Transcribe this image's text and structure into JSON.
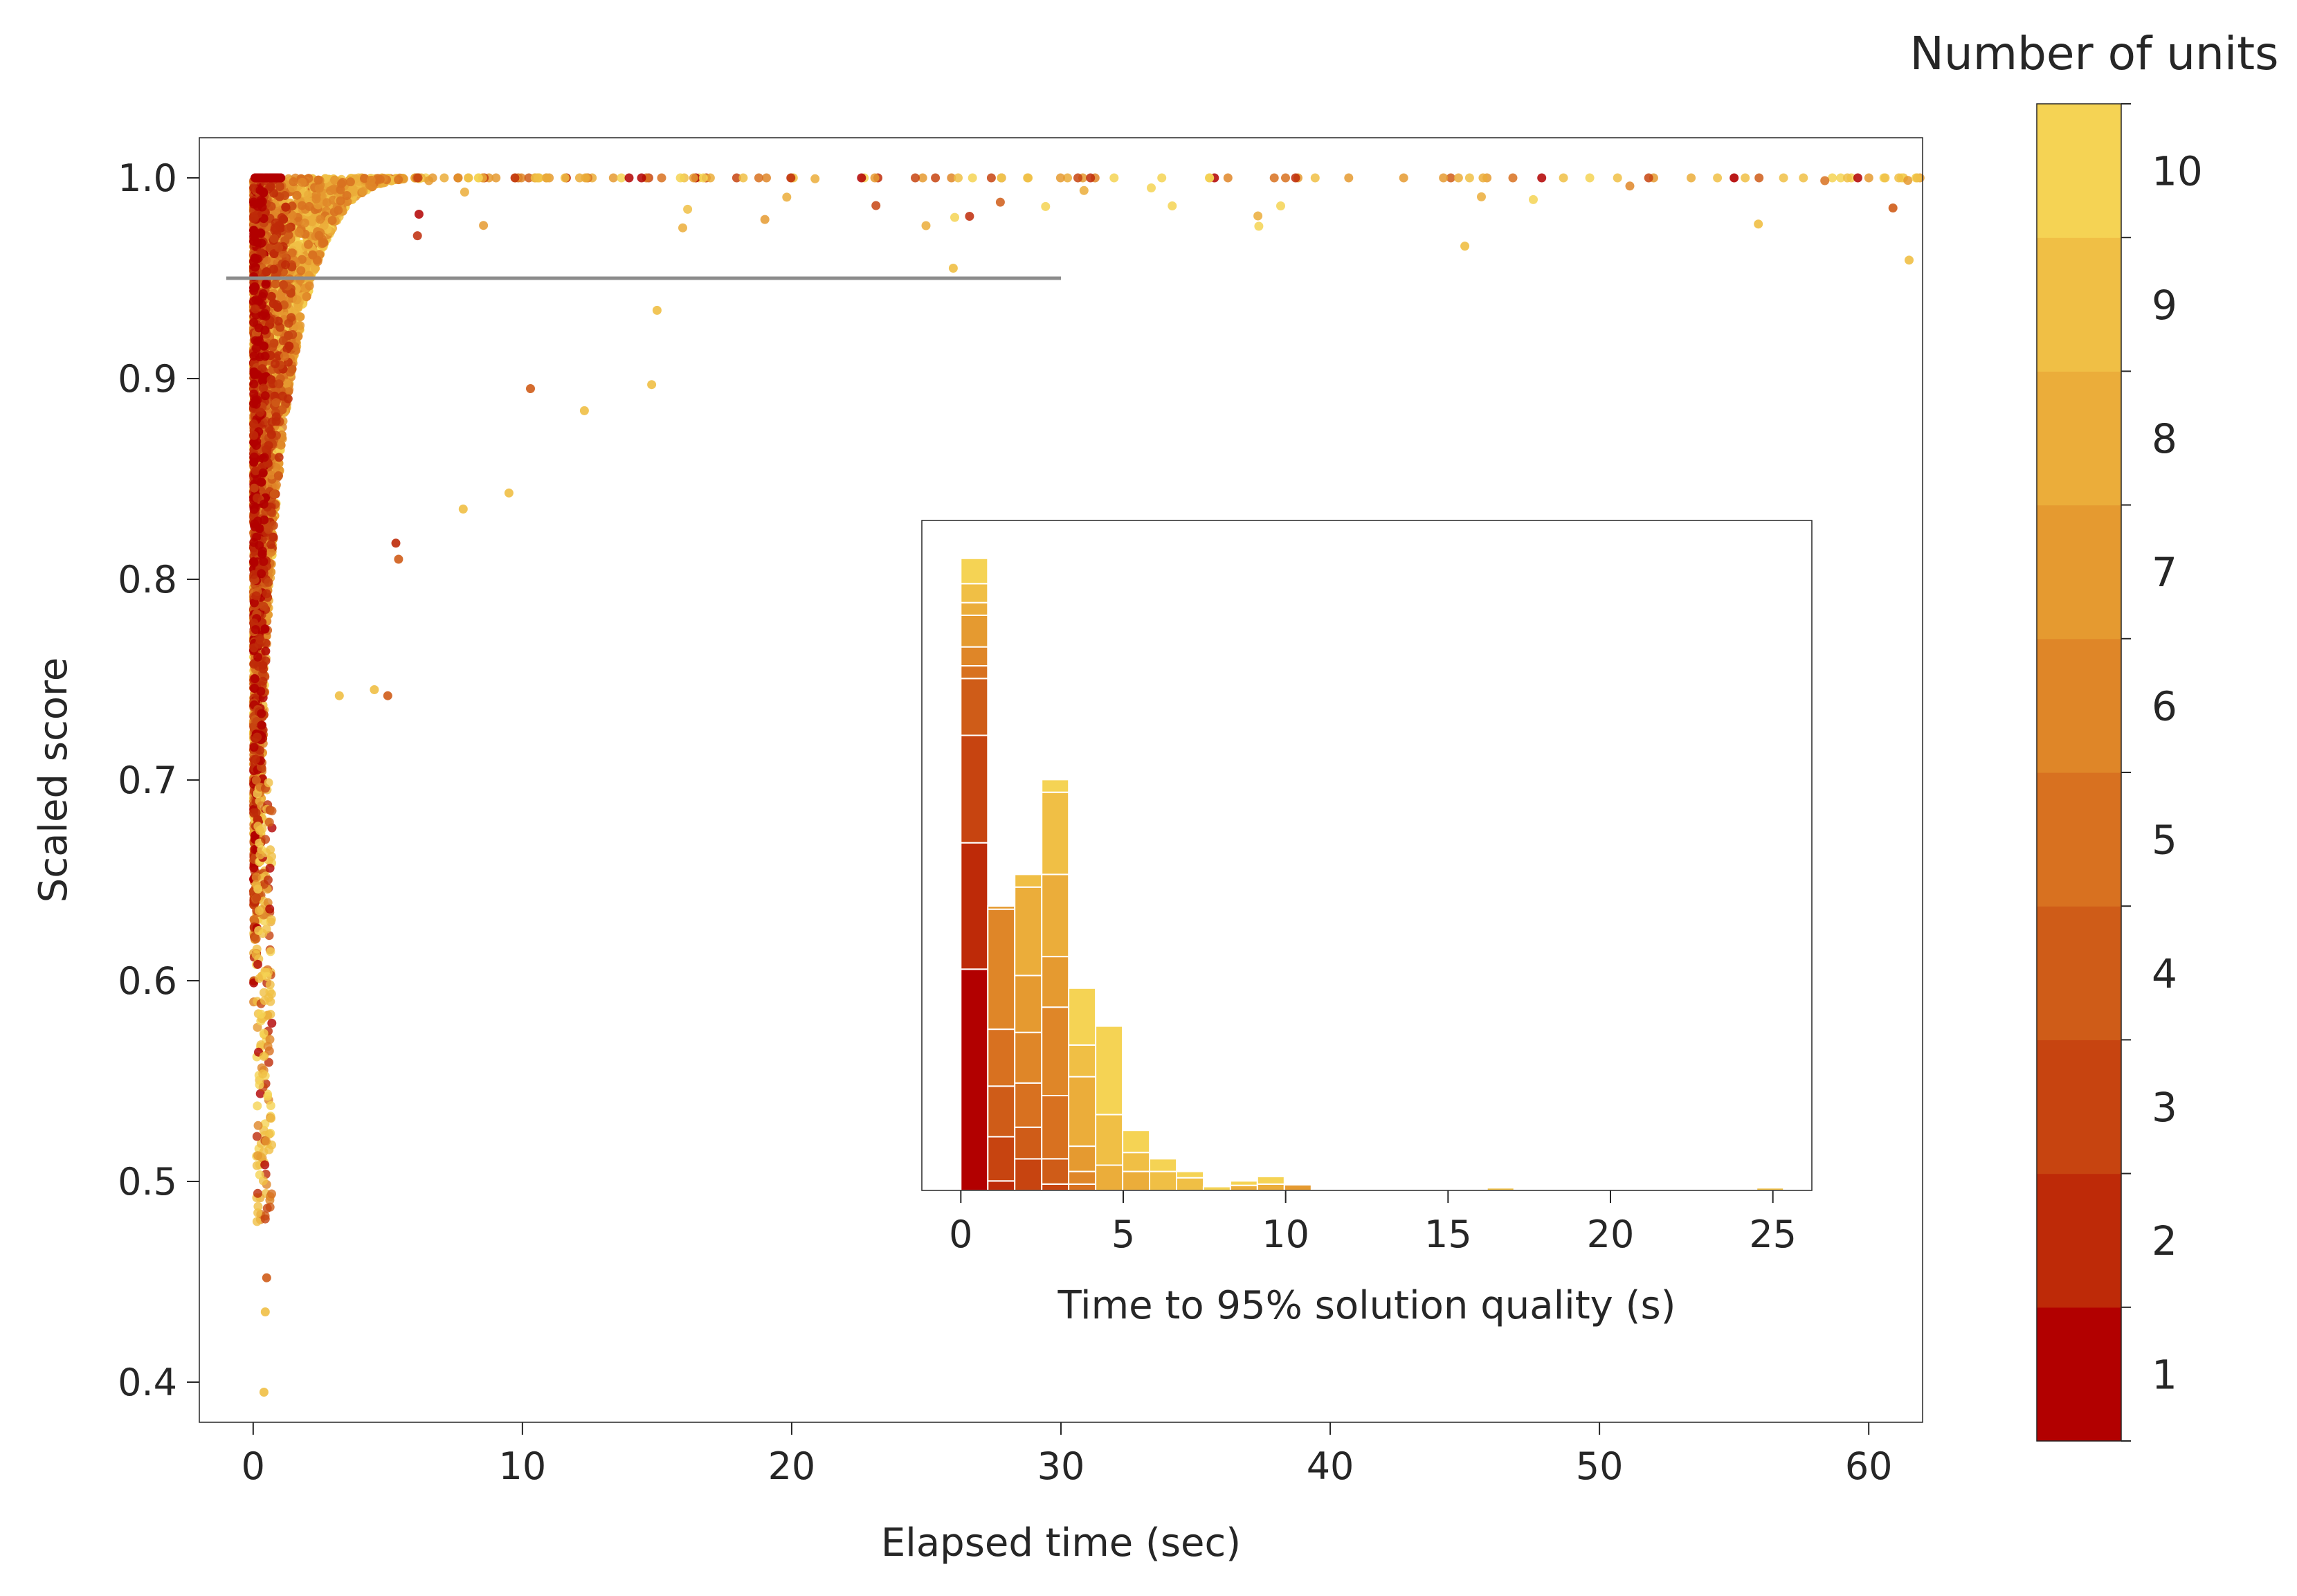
{
  "chart_data": [
    {
      "type": "scatter",
      "xlabel": "Elapsed time (sec)",
      "ylabel": "Scaled score",
      "xlim": [
        -2,
        62
      ],
      "ylim": [
        0.38,
        1.02
      ],
      "xticks": [
        0,
        10,
        20,
        30,
        40,
        50,
        60
      ],
      "yticks": [
        0.4,
        0.5,
        0.6,
        0.7,
        0.8,
        0.9,
        1.0
      ],
      "grid": false,
      "color_encoding": "Number of units (1–10)",
      "reference_line": {
        "y": 0.95,
        "x_range": [
          -1,
          30
        ],
        "color": "#8c8c8c"
      },
      "point_clusters": [
        {
          "description": "main dense cluster near zero time",
          "x_range": [
            0,
            6
          ],
          "y_range": [
            0.6,
            1.0
          ],
          "count": 5000
        },
        {
          "description": "sparse points along score 1.0",
          "x_range": [
            6,
            62
          ],
          "y": 1.0,
          "count": 140
        }
      ],
      "notable_points": [
        {
          "x": 0.4,
          "y": 0.395
        },
        {
          "x": 0.45,
          "y": 0.435
        },
        {
          "x": 0.5,
          "y": 0.452
        },
        {
          "x": 3.2,
          "y": 0.742
        },
        {
          "x": 4.5,
          "y": 0.745
        },
        {
          "x": 5.0,
          "y": 0.742
        },
        {
          "x": 5.4,
          "y": 0.81
        },
        {
          "x": 5.3,
          "y": 0.818
        },
        {
          "x": 7.8,
          "y": 0.835
        },
        {
          "x": 9.5,
          "y": 0.843
        },
        {
          "x": 10.3,
          "y": 0.895
        },
        {
          "x": 12.3,
          "y": 0.884
        },
        {
          "x": 14.8,
          "y": 0.897
        },
        {
          "x": 15.0,
          "y": 0.934
        },
        {
          "x": 26.0,
          "y": 0.955
        },
        {
          "x": 45.0,
          "y": 0.966
        },
        {
          "x": 55.9,
          "y": 0.977
        },
        {
          "x": 60.9,
          "y": 0.985
        },
        {
          "x": 61.5,
          "y": 0.959
        },
        {
          "x": 61.8,
          "y": 1.0
        },
        {
          "x": 55.0,
          "y": 1.0
        }
      ]
    },
    {
      "type": "bar",
      "subtype": "stacked-histogram",
      "xlabel": "Time to 95% solution quality (s)",
      "ylabel": "",
      "xlim": [
        -1.2,
        26.2
      ],
      "xticks": [
        0,
        5,
        10,
        15,
        20,
        25
      ],
      "bin_width": 0.83,
      "bins": [
        {
          "x": 0.0,
          "total": 100,
          "segments": [
            {
              "units": 1,
              "count": 35
            },
            {
              "units": 2,
              "count": 20
            },
            {
              "units": 3,
              "count": 17
            },
            {
              "units": 4,
              "count": 9
            },
            {
              "units": 5,
              "count": 2
            },
            {
              "units": 6,
              "count": 3
            },
            {
              "units": 7,
              "count": 5
            },
            {
              "units": 8,
              "count": 2
            },
            {
              "units": 9,
              "count": 3
            },
            {
              "units": 10,
              "count": 4
            }
          ]
        },
        {
          "x": 0.83,
          "total": 45,
          "segments": [
            {
              "units": 2,
              "count": 1.5
            },
            {
              "units": 3,
              "count": 7
            },
            {
              "units": 4,
              "count": 8
            },
            {
              "units": 5,
              "count": 9
            },
            {
              "units": 6,
              "count": 19
            },
            {
              "units": 7,
              "count": 0.5
            }
          ]
        },
        {
          "x": 1.66,
          "total": 50,
          "segments": [
            {
              "units": 3,
              "count": 5
            },
            {
              "units": 4,
              "count": 5
            },
            {
              "units": 5,
              "count": 7
            },
            {
              "units": 6,
              "count": 8
            },
            {
              "units": 7,
              "count": 9
            },
            {
              "units": 8,
              "count": 14
            },
            {
              "units": 9,
              "count": 2
            }
          ]
        },
        {
          "x": 2.49,
          "total": 65,
          "segments": [
            {
              "units": 3,
              "count": 1
            },
            {
              "units": 4,
              "count": 4
            },
            {
              "units": 5,
              "count": 10
            },
            {
              "units": 6,
              "count": 14
            },
            {
              "units": 7,
              "count": 8
            },
            {
              "units": 8,
              "count": 13
            },
            {
              "units": 9,
              "count": 13
            },
            {
              "units": 10,
              "count": 2
            }
          ]
        },
        {
          "x": 3.32,
          "total": 32,
          "segments": [
            {
              "units": 5,
              "count": 1
            },
            {
              "units": 6,
              "count": 2
            },
            {
              "units": 7,
              "count": 4
            },
            {
              "units": 8,
              "count": 11
            },
            {
              "units": 9,
              "count": 5
            },
            {
              "units": 10,
              "count": 9
            }
          ]
        },
        {
          "x": 4.15,
          "total": 26,
          "segments": [
            {
              "units": 8,
              "count": 4
            },
            {
              "units": 9,
              "count": 8
            },
            {
              "units": 10,
              "count": 14
            }
          ]
        },
        {
          "x": 4.98,
          "total": 9.5,
          "segments": [
            {
              "units": 8,
              "count": 3
            },
            {
              "units": 9,
              "count": 3
            },
            {
              "units": 10,
              "count": 3.5
            }
          ]
        },
        {
          "x": 5.81,
          "total": 5,
          "segments": [
            {
              "units": 9,
              "count": 3
            },
            {
              "units": 10,
              "count": 2
            }
          ]
        },
        {
          "x": 6.64,
          "total": 3,
          "segments": [
            {
              "units": 9,
              "count": 2
            },
            {
              "units": 10,
              "count": 1
            }
          ]
        },
        {
          "x": 7.47,
          "total": 0.6,
          "segments": [
            {
              "units": 10,
              "count": 0.6
            }
          ]
        },
        {
          "x": 8.3,
          "total": 1.5,
          "segments": [
            {
              "units": 8,
              "count": 0.8
            },
            {
              "units": 10,
              "count": 0.7
            }
          ]
        },
        {
          "x": 9.13,
          "total": 2.2,
          "segments": [
            {
              "units": 8,
              "count": 1
            },
            {
              "units": 10,
              "count": 1.2
            }
          ]
        },
        {
          "x": 9.96,
          "total": 0.9,
          "segments": [
            {
              "units": 7,
              "count": 0.9
            }
          ]
        },
        {
          "x": 16.2,
          "total": 0.4,
          "segments": [
            {
              "units": 9,
              "count": 0.4
            }
          ]
        },
        {
          "x": 24.5,
          "total": 0.4,
          "segments": [
            {
              "units": 9,
              "count": 0.4
            }
          ]
        }
      ],
      "ylim": [
        0,
        106
      ]
    }
  ],
  "colorbar": {
    "title": "Number of units",
    "tick_labels": [
      "1",
      "2",
      "3",
      "4",
      "5",
      "6",
      "7",
      "8",
      "9",
      "10"
    ],
    "colors": [
      "#b20000",
      "#be2a08",
      "#c74410",
      "#cf5c18",
      "#d87120",
      "#df8628",
      "#e59a30",
      "#ebad3a",
      "#f0bf45",
      "#f5d354"
    ]
  }
}
